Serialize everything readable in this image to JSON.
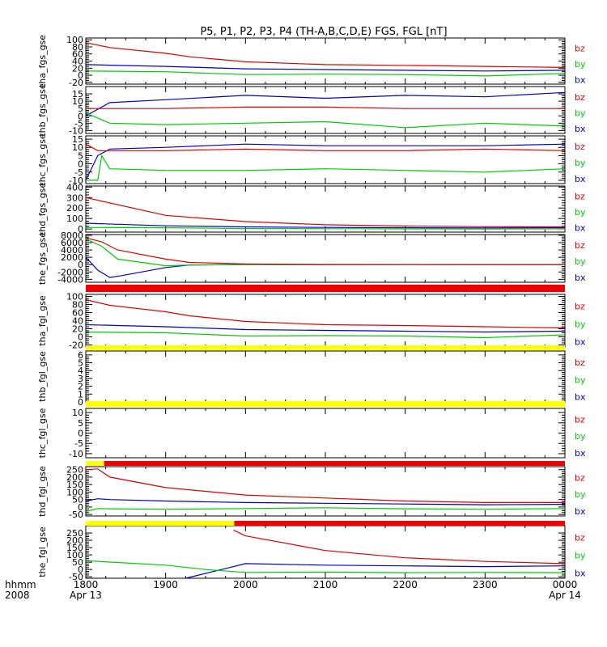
{
  "figure": {
    "title": "P5, P1, P2, P3, P4 (TH-A,B,C,D,E) FGS, FGL [nT]",
    "footer": {
      "label_time": "hhmm",
      "label_year": "2008",
      "x_ticks": [
        "1800",
        "1900",
        "2000",
        "2100",
        "2200",
        "2300",
        "0000"
      ],
      "x_start_date": "Apr 13",
      "x_end_date": "Apr 14"
    }
  },
  "colors": {
    "bz": "#dd0000",
    "by": "#00cc00",
    "bx": "#0000cc",
    "red_bar": "#ee0000",
    "yellow_bar": "#ffff00"
  },
  "chart_data": [
    {
      "type": "line",
      "ylabel": "tha_fgs_gse",
      "ylim": [
        -25,
        105
      ],
      "yticks": [
        -20,
        0,
        20,
        40,
        60,
        80,
        100
      ],
      "legend": [
        "bz",
        "by",
        "bx"
      ],
      "series": [
        {
          "name": "bz",
          "x": [
            1800,
            1830,
            1900,
            1930,
            2000,
            2100,
            2200,
            2300,
            2400
          ],
          "values": [
            92,
            78,
            62,
            52,
            38,
            30,
            28,
            25,
            22
          ]
        },
        {
          "name": "by",
          "x": [
            1800,
            1900,
            2000,
            2100,
            2200,
            2300,
            2400
          ],
          "values": [
            12,
            10,
            2,
            3,
            2,
            -2,
            5
          ]
        },
        {
          "name": "bx",
          "x": [
            1800,
            1900,
            2000,
            2100,
            2200,
            2300,
            2400
          ],
          "values": [
            30,
            25,
            18,
            16,
            14,
            12,
            14
          ]
        }
      ]
    },
    {
      "type": "line",
      "ylabel": "thb_fgs_gse",
      "ylim": [
        -12,
        20
      ],
      "yticks": [
        -10,
        -5,
        0,
        5,
        10,
        15
      ],
      "legend": [
        "bz",
        "by",
        "bx"
      ],
      "series": [
        {
          "name": "bz",
          "x": [
            1800,
            1830,
            1900,
            2000,
            2100,
            2200,
            2300,
            2400
          ],
          "values": [
            5,
            5,
            5,
            6,
            6,
            5,
            5,
            5
          ]
        },
        {
          "name": "by",
          "x": [
            1800,
            1830,
            1900,
            2000,
            2100,
            2200,
            2300,
            2400
          ],
          "values": [
            2,
            -5,
            -6,
            -5,
            -4,
            -8,
            -5,
            -7
          ]
        },
        {
          "name": "bx",
          "x": [
            1800,
            1830,
            1900,
            2000,
            2100,
            2200,
            2300,
            2400
          ],
          "values": [
            0,
            9,
            11,
            14,
            12,
            14,
            13,
            16
          ]
        }
      ]
    },
    {
      "type": "line",
      "ylabel": "thc_fgs_gse",
      "ylim": [
        -12,
        17
      ],
      "yticks": [
        -10,
        -5,
        0,
        5,
        10,
        15
      ],
      "legend": [
        "bz",
        "by",
        "bx"
      ],
      "series": [
        {
          "name": "bz",
          "x": [
            1800,
            1815,
            1830,
            1900,
            2000,
            2100,
            2200,
            2300,
            2400
          ],
          "values": [
            12,
            8,
            8,
            8,
            9,
            8,
            8,
            9,
            8
          ]
        },
        {
          "name": "by",
          "x": [
            1800,
            1815,
            1820,
            1830,
            1900,
            2000,
            2100,
            2200,
            2300,
            2400
          ],
          "values": [
            -10,
            -10,
            5,
            -3,
            -4,
            -4,
            -3,
            -4,
            -5,
            -3
          ]
        },
        {
          "name": "bx",
          "x": [
            1800,
            1815,
            1830,
            1900,
            2000,
            2100,
            2200,
            2300,
            2400
          ],
          "values": [
            -10,
            5,
            9,
            10,
            12,
            11,
            11,
            11,
            12
          ]
        }
      ]
    },
    {
      "type": "line",
      "ylabel": "thd_fgs_gse",
      "ylim": [
        -30,
        410
      ],
      "yticks": [
        0,
        100,
        200,
        300,
        400
      ],
      "legend": [
        "bz",
        "by",
        "bx"
      ],
      "series": [
        {
          "name": "bz",
          "x": [
            1800,
            1900,
            2000,
            2100,
            2200,
            2300,
            2400
          ],
          "values": [
            300,
            130,
            70,
            40,
            28,
            22,
            20
          ]
        },
        {
          "name": "by",
          "x": [
            1800,
            1900,
            2000,
            2100,
            2200,
            2300,
            2400
          ],
          "values": [
            15,
            12,
            5,
            3,
            1,
            0,
            2
          ]
        },
        {
          "name": "bx",
          "x": [
            1800,
            1900,
            2000,
            2100,
            2200,
            2300,
            2400
          ],
          "values": [
            55,
            30,
            20,
            15,
            12,
            10,
            12
          ]
        }
      ]
    },
    {
      "type": "line",
      "ylabel": "the_fgs_gse",
      "ylim": [
        -4800,
        8200
      ],
      "yticks": [
        -4000,
        -2000,
        0,
        2000,
        4000,
        6000,
        8000
      ],
      "legend": [
        "bz",
        "by",
        "bx"
      ],
      "series": [
        {
          "name": "bz",
          "x": [
            1800,
            1820,
            1840,
            1900,
            1930,
            2000,
            2100,
            2400
          ],
          "values": [
            7300,
            6200,
            4000,
            1500,
            600,
            200,
            50,
            0
          ]
        },
        {
          "name": "by",
          "x": [
            1800,
            1820,
            1840,
            1900,
            1930,
            2000,
            2100,
            2400
          ],
          "values": [
            7000,
            5000,
            1500,
            -300,
            -100,
            50,
            0,
            0
          ]
        },
        {
          "name": "bx",
          "x": [
            1800,
            1815,
            1830,
            1845,
            1900,
            1930,
            2000,
            2400
          ],
          "values": [
            2000,
            -1500,
            -3500,
            -3000,
            -800,
            -100,
            0,
            0
          ]
        }
      ]
    },
    {
      "type": "line",
      "ylabel": "tha_fgl_gse",
      "ylim": [
        -25,
        105
      ],
      "yticks": [
        -20,
        0,
        20,
        40,
        60,
        80,
        100
      ],
      "legend": [
        "bz",
        "by",
        "bx"
      ],
      "series": [
        {
          "name": "bz",
          "x": [
            1800,
            1830,
            1900,
            1930,
            2000,
            2100,
            2200,
            2300,
            2400
          ],
          "values": [
            92,
            78,
            62,
            52,
            38,
            30,
            28,
            25,
            22
          ]
        },
        {
          "name": "by",
          "x": [
            1800,
            1900,
            2000,
            2100,
            2200,
            2300,
            2400
          ],
          "values": [
            12,
            10,
            2,
            3,
            2,
            -2,
            5
          ]
        },
        {
          "name": "bx",
          "x": [
            1800,
            1900,
            2000,
            2100,
            2200,
            2300,
            2400
          ],
          "values": [
            30,
            25,
            18,
            16,
            14,
            12,
            14
          ]
        }
      ]
    },
    {
      "type": "line",
      "ylabel": "thb_fgl_gse",
      "ylim": [
        0,
        6.5
      ],
      "yticks": [
        0,
        1,
        2,
        3,
        4,
        5,
        6
      ],
      "legend": [
        "bz",
        "by",
        "bx"
      ],
      "series": []
    },
    {
      "type": "line",
      "ylabel": "thc_fgl_gse",
      "ylim": [
        -12,
        12
      ],
      "yticks": [
        -10,
        -5,
        0,
        5,
        10
      ],
      "legend": [
        "bz",
        "by",
        "bx"
      ],
      "series": []
    },
    {
      "type": "line",
      "ylabel": "thd_fgl_gse",
      "ylim": [
        -60,
        270
      ],
      "yticks": [
        -50,
        0,
        50,
        100,
        150,
        200,
        250
      ],
      "legend": [
        "bz",
        "by",
        "bx"
      ],
      "series": [
        {
          "name": "bz",
          "x": [
            1800,
            1815,
            1830,
            1900,
            2000,
            2100,
            2200,
            2300,
            2400
          ],
          "values": [
            250,
            255,
            200,
            130,
            80,
            60,
            40,
            30,
            30
          ]
        },
        {
          "name": "by",
          "x": [
            1800,
            1815,
            1830,
            1900,
            2000,
            2100,
            2200,
            2300,
            2400
          ],
          "values": [
            -30,
            -10,
            -12,
            -15,
            -10,
            -5,
            -12,
            -15,
            -10
          ]
        },
        {
          "name": "bx",
          "x": [
            1800,
            1815,
            1830,
            1900,
            2000,
            2100,
            2200,
            2300,
            2400
          ],
          "values": [
            40,
            55,
            50,
            40,
            30,
            25,
            20,
            15,
            18
          ]
        }
      ]
    },
    {
      "type": "line",
      "ylabel": "the_fgl_gse",
      "ylim": [
        -60,
        300
      ],
      "yticks": [
        -50,
        0,
        50,
        100,
        150,
        200,
        250
      ],
      "legend": [
        "bz",
        "by",
        "bx"
      ],
      "series": [
        {
          "name": "bz",
          "x": [
            1985,
            2000,
            2100,
            2200,
            2300,
            2400
          ],
          "values": [
            270,
            230,
            130,
            80,
            55,
            40
          ]
        },
        {
          "name": "by",
          "x": [
            1800,
            1900,
            1950,
            2000,
            2100,
            2200,
            2300,
            2400
          ],
          "values": [
            60,
            30,
            0,
            -20,
            -18,
            -22,
            -20,
            -22
          ]
        },
        {
          "name": "bx",
          "x": [
            1925,
            1985,
            2000,
            2100,
            2200,
            2300,
            2400
          ],
          "values": [
            -60,
            20,
            40,
            30,
            25,
            20,
            25
          ]
        }
      ]
    }
  ],
  "quality_bars": [
    {
      "after_panel": 4,
      "segments": [
        {
          "x0": 1800,
          "x1": 2400,
          "color": "red"
        }
      ]
    },
    {
      "after_panel": 5,
      "segments": [
        {
          "x0": 1800,
          "x1": 2400,
          "color": "yellow"
        }
      ]
    },
    {
      "after_panel": 6,
      "segments": [
        {
          "x0": 1800,
          "x1": 2400,
          "color": "yellow"
        }
      ]
    },
    {
      "after_panel": 7,
      "segments": [
        {
          "x0": 1800,
          "x1": 1823,
          "color": "yellow"
        },
        {
          "x0": 1823,
          "x1": 2400,
          "color": "red"
        }
      ]
    },
    {
      "after_panel": 8,
      "segments": [
        {
          "x0": 1800,
          "x1": 1986,
          "color": "yellow"
        },
        {
          "x0": 1986,
          "x1": 2400,
          "color": "red"
        }
      ]
    }
  ]
}
